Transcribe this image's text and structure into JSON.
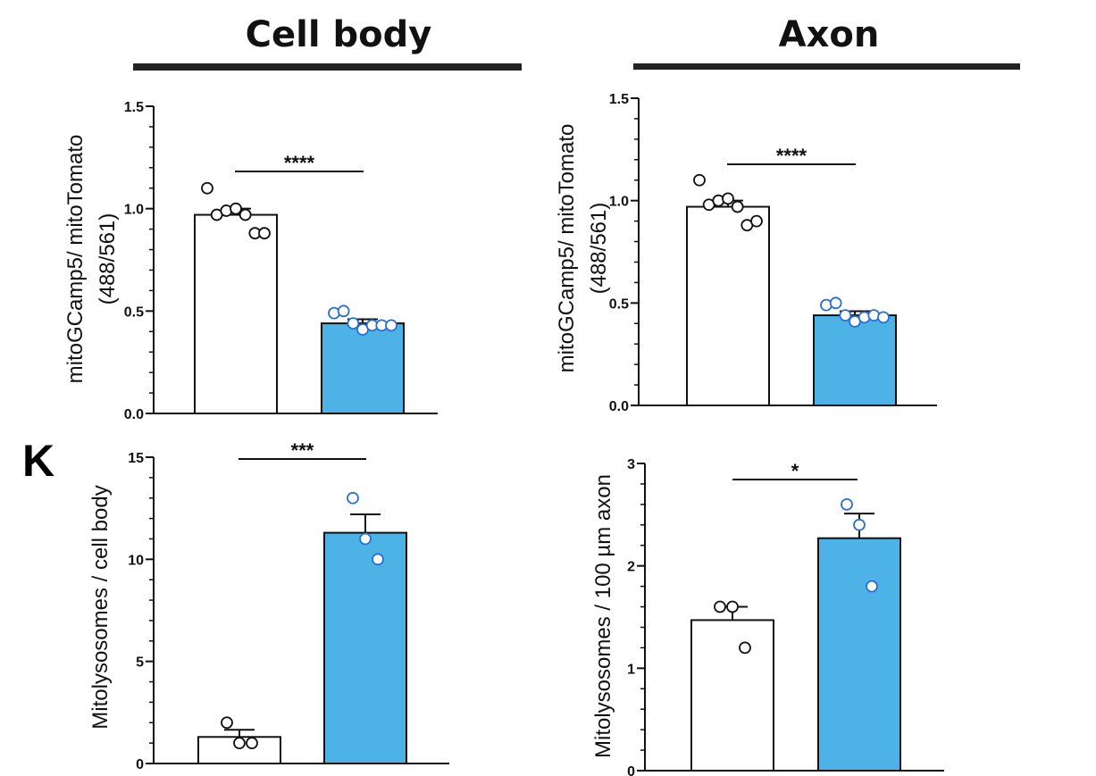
{
  "headers": {
    "left": "Cell body",
    "right": "Axon"
  },
  "panel_label": "K",
  "colors": {
    "control_fill": "#ffffff",
    "treated_fill": "#4db3e6",
    "treated_point": "#2a6fd1",
    "control_point": "#111111",
    "ink": "#111111"
  },
  "chart_data": [
    {
      "id": "cellbody_ratio",
      "type": "bar",
      "ylabel_lines": [
        "mitoGCamp5/ mitoTomato",
        "(488/561)"
      ],
      "ylim": [
        0,
        1.5
      ],
      "major_ticks": [
        0,
        0.5,
        1.0,
        1.5
      ],
      "tick_labels": [
        "0.0",
        "0.5",
        "1.0",
        "1.5"
      ],
      "minor_step": 0.1,
      "significance": "****",
      "series": [
        {
          "value": 0.97,
          "sem": 0.03,
          "points": [
            1.1,
            0.97,
            0.99,
            1.0,
            0.97,
            0.88,
            0.88
          ]
        },
        {
          "value": 0.44,
          "sem": 0.02,
          "points": [
            0.49,
            0.5,
            0.44,
            0.41,
            0.43,
            0.43,
            0.43
          ]
        }
      ]
    },
    {
      "id": "axon_ratio",
      "type": "bar",
      "ylabel_lines": [
        "mitoGCamp5/ mitoTomato",
        "(488/561)"
      ],
      "ylim": [
        0,
        1.5
      ],
      "major_ticks": [
        0,
        0.5,
        1.0,
        1.5
      ],
      "tick_labels": [
        "0.0",
        "0.5",
        "1.0",
        "1.5"
      ],
      "minor_step": 0.1,
      "significance": "****",
      "series": [
        {
          "value": 0.97,
          "sem": 0.03,
          "points": [
            1.1,
            0.98,
            1.0,
            1.01,
            0.97,
            0.88,
            0.9
          ]
        },
        {
          "value": 0.44,
          "sem": 0.02,
          "points": [
            0.49,
            0.5,
            0.44,
            0.41,
            0.43,
            0.44,
            0.43
          ]
        }
      ]
    },
    {
      "id": "cellbody_mitolysosomes",
      "type": "bar",
      "ylabel_lines": [
        "Mitolysosomes / cell body"
      ],
      "ylim": [
        0,
        15
      ],
      "major_ticks": [
        0,
        5,
        10,
        15
      ],
      "tick_labels": [
        "0",
        "5",
        "10",
        "15"
      ],
      "minor_step": 1,
      "significance": "***",
      "series": [
        {
          "value": 1.3,
          "sem": 0.35,
          "points": [
            2.0,
            1.0,
            1.0
          ]
        },
        {
          "value": 11.3,
          "sem": 0.9,
          "points": [
            13.0,
            11.0,
            10.0
          ]
        }
      ]
    },
    {
      "id": "axon_mitolysosomes",
      "type": "bar",
      "ylabel_lines": [
        "Mitolysosomes / 100 µm axon"
      ],
      "ylim": [
        0,
        3
      ],
      "major_ticks": [
        0,
        1,
        2,
        3
      ],
      "tick_labels": [
        "0",
        "1",
        "2",
        "3"
      ],
      "minor_step": 0.2,
      "significance": "*",
      "series": [
        {
          "value": 1.47,
          "sem": 0.13,
          "points": [
            1.6,
            1.6,
            1.2
          ]
        },
        {
          "value": 2.27,
          "sem": 0.24,
          "points": [
            2.6,
            2.4,
            1.8
          ]
        }
      ]
    }
  ]
}
